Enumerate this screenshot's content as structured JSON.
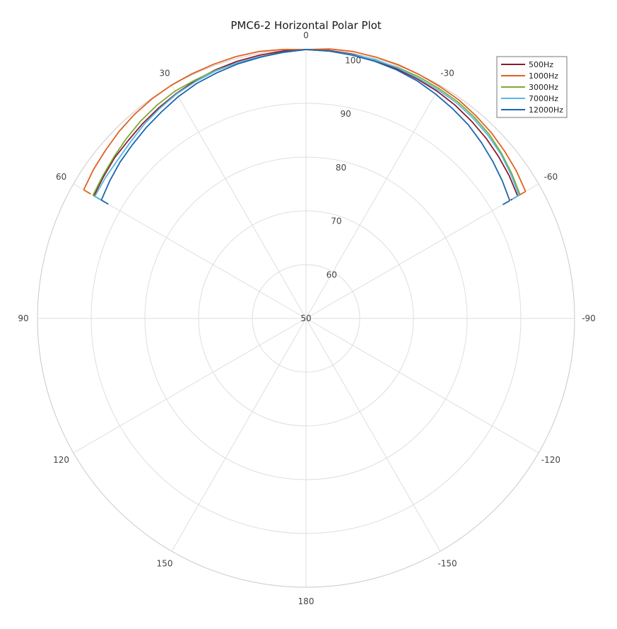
{
  "chart_data": {
    "type": "line",
    "subtype": "polar",
    "title": "PMC6-2 Horizontal Polar Plot",
    "angle_ticks": [
      "0",
      "30",
      "60",
      "90",
      "120",
      "150",
      "180",
      "-150",
      "-120",
      "-90",
      "-60",
      "-30"
    ],
    "angle_tick_values": [
      0,
      30,
      60,
      90,
      120,
      150,
      180,
      -150,
      -120,
      -90,
      -60,
      -30
    ],
    "angle_direction": "counterclockwise",
    "zero_location": "top",
    "radial_ticks": [
      "50",
      "60",
      "70",
      "80",
      "90",
      "100"
    ],
    "radial_range": [
      50,
      100
    ],
    "grid": true,
    "legend_position": "top-right",
    "angles": [
      -60,
      -55,
      -50,
      -45,
      -40,
      -35,
      -30,
      -25,
      -20,
      -15,
      -10,
      -5,
      0,
      5,
      10,
      15,
      20,
      25,
      30,
      35,
      40,
      45,
      50,
      55,
      60
    ],
    "series": [
      {
        "name": "500Hz",
        "color": "#8b1a2f",
        "values": [
          95.5,
          96.2,
          96.8,
          97.4,
          97.9,
          98.4,
          98.8,
          99.1,
          99.4,
          99.7,
          99.9,
          100,
          100,
          99.9,
          99.7,
          99.5,
          99.2,
          98.8,
          98.3,
          97.8,
          97.3,
          96.8,
          96.5,
          96.0,
          95.6
        ]
      },
      {
        "name": "1000Hz",
        "color": "#e06020",
        "values": [
          97.2,
          97.8,
          98.3,
          98.8,
          99.2,
          99.6,
          99.8,
          100,
          100.2,
          100.3,
          100.4,
          100.3,
          100,
          100.2,
          100.4,
          100.4,
          100.3,
          100.2,
          100.1,
          99.9,
          99.6,
          99.2,
          98.7,
          98.3,
          97.8
        ]
      },
      {
        "name": "3000Hz",
        "color": "#7aab30",
        "values": [
          96.0,
          96.8,
          97.6,
          98.3,
          98.8,
          99.2,
          99.4,
          99.6,
          99.7,
          99.7,
          99.8,
          99.9,
          100,
          99.7,
          99.4,
          99.2,
          99.1,
          98.9,
          98.8,
          98.4,
          97.9,
          97.3,
          96.7,
          96.2,
          95.8
        ]
      },
      {
        "name": "7000Hz",
        "color": "#56b8e8",
        "values": [
          95.8,
          96.6,
          97.4,
          98.0,
          98.5,
          98.9,
          99.1,
          99.3,
          99.6,
          99.8,
          99.8,
          99.9,
          100,
          99.6,
          99.4,
          99.2,
          99.0,
          98.6,
          98.2,
          97.6,
          97.0,
          96.3,
          95.8,
          95.6,
          95.4
        ]
      },
      {
        "name": "12000Hz",
        "color": "#1a64b0",
        "values": [
          93.8,
          94.6,
          95.4,
          96.2,
          97.0,
          97.6,
          98.2,
          98.8,
          99.2,
          99.5,
          99.7,
          99.9,
          100,
          99.7,
          99.3,
          99.0,
          98.6,
          98.2,
          97.6,
          96.9,
          96.3,
          95.7,
          95.2,
          94.6,
          94.0
        ]
      }
    ]
  }
}
